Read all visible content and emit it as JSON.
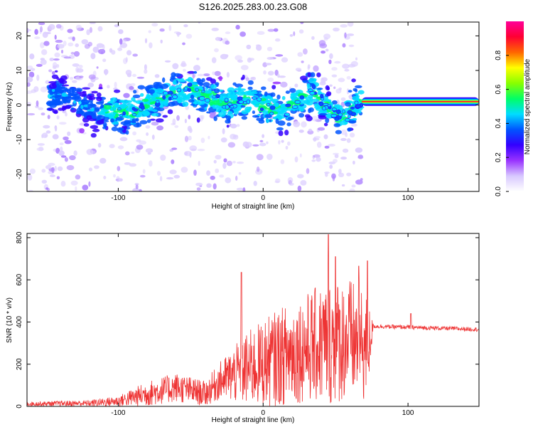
{
  "chart_data": [
    {
      "type": "heatmap",
      "title": "S126.2025.283.00.23.G08",
      "xlabel": "Height of straight line (km)",
      "ylabel": "Frequency (Hz)",
      "xlim": [
        -163,
        149
      ],
      "ylim": [
        -25,
        24
      ],
      "xticks": [
        -100,
        0,
        100
      ],
      "yticks": [
        -20,
        -10,
        0,
        10,
        20
      ],
      "xtick_labels": [
        "-100",
        "0",
        "100"
      ],
      "ytick_labels": [
        "-20",
        "-10",
        "0",
        "10",
        "20"
      ],
      "colorbar": {
        "label": "Normalized spectral amplitude",
        "range": [
          0.0,
          1.0
        ],
        "ticks": [
          0.0,
          0.2,
          0.4,
          0.6,
          0.8
        ],
        "tick_labels": [
          "0.0",
          "0.2",
          "0.4",
          "0.6",
          "0.8"
        ],
        "colors": [
          "#ffffff",
          "#d8c8ff",
          "#9933ff",
          "#3300ff",
          "#0055ff",
          "#00ddff",
          "#00ff66",
          "#88ff00",
          "#ffff00",
          "#ff6600",
          "#ff0033",
          "#ff0099"
        ]
      },
      "ridge": [
        {
          "x": -135,
          "f": 3
        },
        {
          "x": -120,
          "f": -1
        },
        {
          "x": -105,
          "f": -2
        },
        {
          "x": -90,
          "f": -2
        },
        {
          "x": -75,
          "f": 1
        },
        {
          "x": -60,
          "f": 4
        },
        {
          "x": -50,
          "f": 5
        },
        {
          "x": -45,
          "f": 3
        },
        {
          "x": -35,
          "f": 2
        },
        {
          "x": -25,
          "f": 0
        },
        {
          "x": -15,
          "f": 2
        },
        {
          "x": -5,
          "f": 1
        },
        {
          "x": 5,
          "f": -1
        },
        {
          "x": 15,
          "f": -2
        },
        {
          "x": 25,
          "f": 2
        },
        {
          "x": 35,
          "f": 4
        },
        {
          "x": 45,
          "f": -1
        },
        {
          "x": 52,
          "f": -3
        },
        {
          "x": 58,
          "f": -3
        },
        {
          "x": 63,
          "f": -1
        },
        {
          "x": 68,
          "f": 1.5
        },
        {
          "x": 80,
          "f": 1.3
        },
        {
          "x": 100,
          "f": 1.0
        },
        {
          "x": 120,
          "f": 1.0
        },
        {
          "x": 148,
          "f": 0.8
        }
      ],
      "carrier": {
        "x_start": 68,
        "x_end": 149,
        "frequency": 1.0,
        "amplitude": 1.0
      }
    },
    {
      "type": "line",
      "title": "",
      "xlabel": "Height of straight line (km)",
      "ylabel": "SNR (10 * v/v)",
      "xlim": [
        -163,
        149
      ],
      "ylim": [
        0,
        820
      ],
      "xticks": [
        -100,
        0,
        100
      ],
      "yticks": [
        0,
        200,
        400,
        600,
        800
      ],
      "xtick_labels": [
        "-100",
        "0",
        "100"
      ],
      "ytick_labels": [
        "0",
        "200",
        "400",
        "600",
        "800"
      ],
      "color": "#ee3333",
      "envelope": [
        {
          "x": -163,
          "mean": 12,
          "spread": 10
        },
        {
          "x": -120,
          "mean": 15,
          "spread": 15
        },
        {
          "x": -100,
          "mean": 25,
          "spread": 25
        },
        {
          "x": -80,
          "mean": 60,
          "spread": 60
        },
        {
          "x": -60,
          "mean": 90,
          "spread": 70
        },
        {
          "x": -40,
          "mean": 60,
          "spread": 60
        },
        {
          "x": -30,
          "mean": 120,
          "spread": 90
        },
        {
          "x": -10,
          "mean": 180,
          "spread": 180
        },
        {
          "x": 10,
          "mean": 230,
          "spread": 230
        },
        {
          "x": 30,
          "mean": 280,
          "spread": 260
        },
        {
          "x": 45,
          "mean": 300,
          "spread": 300
        },
        {
          "x": 60,
          "mean": 320,
          "spread": 290
        },
        {
          "x": 72,
          "mean": 270,
          "spread": 260
        },
        {
          "x": 76,
          "mean": 380,
          "spread": 10
        },
        {
          "x": 100,
          "mean": 375,
          "spread": 10
        },
        {
          "x": 149,
          "mean": 365,
          "spread": 10
        }
      ],
      "spikes": [
        {
          "x": -15,
          "y": 635
        },
        {
          "x": 45,
          "y": 815
        },
        {
          "x": 50,
          "y": 710
        },
        {
          "x": 66,
          "y": 665
        },
        {
          "x": 72,
          "y": 690
        },
        {
          "x": 102,
          "y": 440
        }
      ]
    }
  ]
}
